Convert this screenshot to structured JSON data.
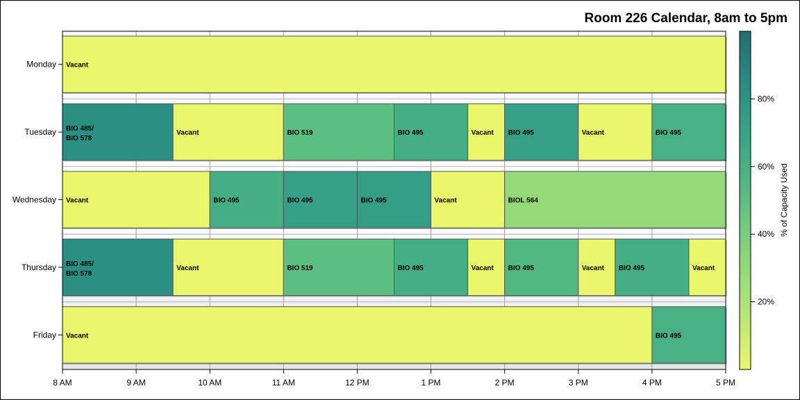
{
  "chart_data": {
    "type": "heatmap",
    "title": "Room 226 Calendar, 8am to 5pm",
    "x_ticks": [
      "8 AM",
      "9 AM",
      "10 AM",
      "11 AM",
      "12 PM",
      "1 PM",
      "2 PM",
      "3 PM",
      "4 PM",
      "5 PM"
    ],
    "xlim": [
      8,
      17
    ],
    "days": [
      "Monday",
      "Tuesday",
      "Wednesday",
      "Thursday",
      "Friday"
    ],
    "colorbar": {
      "label": "% of Capacity Used",
      "ticks": [
        "20%",
        "40%",
        "60%",
        "80%"
      ],
      "tick_values": [
        20,
        40,
        60,
        80
      ],
      "range": [
        0,
        100
      ],
      "colors": [
        "#ebf76b",
        "#b5e675",
        "#8bd67a",
        "#5cbf82",
        "#3aa886",
        "#2a8f84",
        "#236f74"
      ]
    },
    "bookings": [
      {
        "day": "Monday",
        "start": 8,
        "end": 17,
        "label": "Vacant",
        "capacity": 0
      },
      {
        "day": "Tuesday",
        "start": 8,
        "end": 9.5,
        "label": "BIO 485/",
        "label2": "BIO 578",
        "capacity": 83
      },
      {
        "day": "Tuesday",
        "start": 9.5,
        "end": 11,
        "label": "Vacant",
        "capacity": 0
      },
      {
        "day": "Tuesday",
        "start": 11,
        "end": 12.5,
        "label": "BIO 519",
        "capacity": 50
      },
      {
        "day": "Tuesday",
        "start": 12.5,
        "end": 13.5,
        "label": "BIO 495",
        "capacity": 62
      },
      {
        "day": "Tuesday",
        "start": 13.5,
        "end": 14,
        "label": "Vacant",
        "capacity": 0
      },
      {
        "day": "Tuesday",
        "start": 14,
        "end": 15,
        "label": "BIO 495",
        "capacity": 72
      },
      {
        "day": "Tuesday",
        "start": 15,
        "end": 16,
        "label": "Vacant",
        "capacity": 0
      },
      {
        "day": "Tuesday",
        "start": 16,
        "end": 17,
        "label": "BIO 495",
        "capacity": 60
      },
      {
        "day": "Wednesday",
        "start": 8,
        "end": 10,
        "label": "Vacant",
        "capacity": 0
      },
      {
        "day": "Wednesday",
        "start": 10,
        "end": 11,
        "label": "BIO 495",
        "capacity": 62
      },
      {
        "day": "Wednesday",
        "start": 11,
        "end": 12,
        "label": "BIO 495",
        "capacity": 72
      },
      {
        "day": "Wednesday",
        "start": 12,
        "end": 13,
        "label": "BIO 495",
        "capacity": 74
      },
      {
        "day": "Wednesday",
        "start": 13,
        "end": 14,
        "label": "Vacant",
        "capacity": 0
      },
      {
        "day": "Wednesday",
        "start": 14,
        "end": 17,
        "label": "BIOL 564",
        "capacity": 30
      },
      {
        "day": "Thursday",
        "start": 8,
        "end": 9.5,
        "label": "BIO 485/",
        "label2": "BIO 578",
        "capacity": 83
      },
      {
        "day": "Thursday",
        "start": 9.5,
        "end": 11,
        "label": "Vacant",
        "capacity": 0
      },
      {
        "day": "Thursday",
        "start": 11,
        "end": 12.5,
        "label": "BIO 519",
        "capacity": 50
      },
      {
        "day": "Thursday",
        "start": 12.5,
        "end": 13.5,
        "label": "BIO 495",
        "capacity": 62
      },
      {
        "day": "Thursday",
        "start": 13.5,
        "end": 14,
        "label": "Vacant",
        "capacity": 0
      },
      {
        "day": "Thursday",
        "start": 14,
        "end": 15,
        "label": "BIO 495",
        "capacity": 55
      },
      {
        "day": "Thursday",
        "start": 15,
        "end": 15.5,
        "label": "Vacant",
        "capacity": 0
      },
      {
        "day": "Thursday",
        "start": 15.5,
        "end": 16.5,
        "label": "BIO 495",
        "capacity": 62
      },
      {
        "day": "Thursday",
        "start": 16.5,
        "end": 17,
        "label": "Vacant",
        "capacity": 0
      },
      {
        "day": "Friday",
        "start": 8,
        "end": 16,
        "label": "Vacant",
        "capacity": 0
      },
      {
        "day": "Friday",
        "start": 16,
        "end": 17,
        "label": "BIO 495",
        "capacity": 60
      }
    ]
  }
}
